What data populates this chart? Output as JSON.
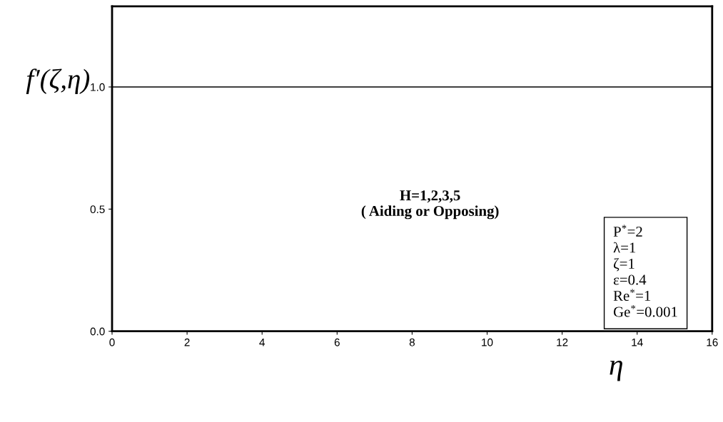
{
  "chart_data": {
    "type": "line",
    "xlabel": "η",
    "ylabel": "f′(ζ,η)",
    "series": [
      {
        "color": "#000000",
        "x": [
          0,
          16
        ],
        "values": [
          1,
          1
        ]
      }
    ],
    "xlim": [
      0,
      16
    ],
    "xticks": [
      0,
      2,
      4,
      6,
      8,
      10,
      12,
      14,
      16
    ],
    "ylim": [
      0,
      1.33
    ],
    "yticks": [
      {
        "value": 0,
        "label": "0.0"
      },
      {
        "value": 0.5,
        "label": "0.5"
      },
      {
        "value": 1,
        "label": "1.0"
      }
    ],
    "grid": false,
    "legend": false,
    "marker": "none",
    "line_style": "solid",
    "annotations": [
      "H=1,2,3,5\n( Aiding or Opposing)",
      "P$^{*}$=2\nλ=1\nζ=1\nε=0.4\nRe$^{*}$=1\nGe$^{*}$=0.001"
    ]
  }
}
